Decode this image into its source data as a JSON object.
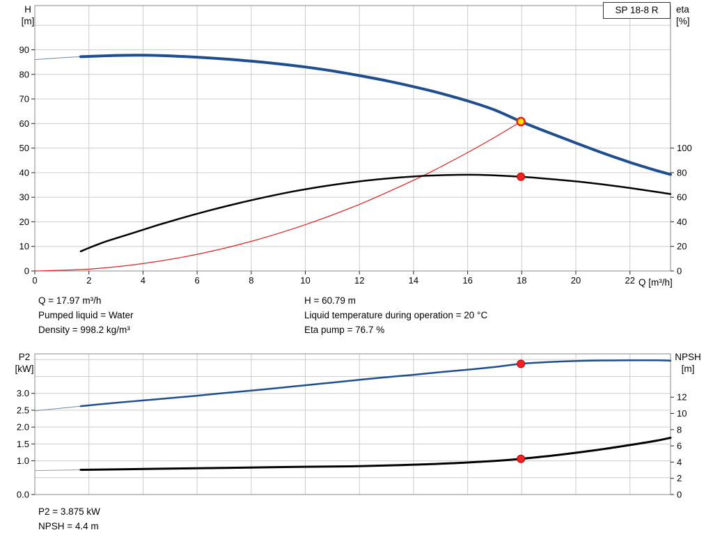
{
  "title_box": "SP 18-8 R",
  "axis_titles": {
    "top_left": [
      "H",
      "[m]"
    ],
    "top_right": [
      "eta",
      "[%]"
    ],
    "bottom_left": [
      "P2",
      "[kW]"
    ],
    "bottom_right": [
      "NPSH",
      "[m]"
    ]
  },
  "info_top": {
    "col1": [
      "Q = 17.97 m³/h",
      "Pumped liquid = Water",
      "Density = 998.2 kg/m³"
    ],
    "col2": [
      "H = 60.79 m",
      "Liquid temperature during operation = 20 °C",
      "Eta pump = 76.7 %"
    ]
  },
  "info_bottom": [
    "P2 = 3.875 kW",
    "NPSH = 4.4 m"
  ],
  "colors": {
    "curve_blue": "#1f4e8f",
    "curve_lead_blue": "#6e87a8",
    "curve_black": "#000000",
    "curve_lead_gray": "#9a9a9a",
    "curve_red": "#e02020",
    "marker_red": "#ee2222",
    "marker_red_edge": "#c00000",
    "marker_yellow": "#ffe400",
    "grid": "#cccccc",
    "frame": "#888888",
    "tick": "#222222"
  },
  "chart_data": [
    {
      "type": "line",
      "title": "SP 18-8 R",
      "xlabel": "Q [m³/h]",
      "x_range": [
        0,
        23.5
      ],
      "x_ticks": [
        {
          "v": 0,
          "label": "0"
        },
        {
          "v": 2,
          "label": "2"
        },
        {
          "v": 4,
          "label": "4"
        },
        {
          "v": 6,
          "label": "6"
        },
        {
          "v": 8,
          "label": "8"
        },
        {
          "v": 10,
          "label": "10"
        },
        {
          "v": 12,
          "label": "12"
        },
        {
          "v": 14,
          "label": "14"
        },
        {
          "v": 16,
          "label": "16"
        },
        {
          "v": 18,
          "label": "18"
        },
        {
          "v": 20,
          "label": "20"
        },
        {
          "v": 22,
          "label": "22"
        }
      ],
      "left_axis": {
        "label": "H [m]",
        "range": [
          0,
          108
        ],
        "ticks": [
          {
            "v": 0,
            "label": "0"
          },
          {
            "v": 10,
            "label": "10"
          },
          {
            "v": 20,
            "label": "20"
          },
          {
            "v": 30,
            "label": "30"
          },
          {
            "v": 40,
            "label": "40"
          },
          {
            "v": 50,
            "label": "50"
          },
          {
            "v": 60,
            "label": "60"
          },
          {
            "v": 70,
            "label": "70"
          },
          {
            "v": 80,
            "label": "80"
          },
          {
            "v": 90,
            "label": "90"
          },
          {
            "v": 100,
            "label": ""
          }
        ]
      },
      "right_axis": {
        "label": "eta [%]",
        "range": [
          0,
          216
        ],
        "ticks": [
          {
            "v": 0,
            "label": "0"
          },
          {
            "v": 20,
            "label": "20"
          },
          {
            "v": 40,
            "label": "40"
          },
          {
            "v": 60,
            "label": "60"
          },
          {
            "v": 80,
            "label": "80"
          },
          {
            "v": 100,
            "label": "100"
          }
        ]
      },
      "grid": true,
      "box": {
        "x0": 50,
        "x1": 963,
        "y0": 8,
        "y1": 389
      },
      "series": [
        {
          "name": "duty-parabola",
          "axis": "left",
          "color": "#e02020",
          "width": 1.2,
          "points": [
            [
              0,
              0
            ],
            [
              2,
              0.75
            ],
            [
              4,
              3.01
            ],
            [
              6,
              6.78
            ],
            [
              8,
              12.05
            ],
            [
              10,
              18.83
            ],
            [
              12,
              27.11
            ],
            [
              14,
              36.9
            ],
            [
              15,
              42.36
            ],
            [
              16,
              48.2
            ],
            [
              17,
              54.41
            ],
            [
              17.97,
              60.79
            ]
          ]
        },
        {
          "name": "eta-curve",
          "axis": "right",
          "color": "#000000",
          "width": 2.5,
          "points": [
            [
              1.7,
              16
            ],
            [
              2.5,
              23
            ],
            [
              3.5,
              30
            ],
            [
              4.5,
              37
            ],
            [
              5.5,
              43.5
            ],
            [
              6.5,
              49.5
            ],
            [
              7.5,
              55
            ],
            [
              8.5,
              60
            ],
            [
              9.5,
              64.5
            ],
            [
              10.5,
              68.3
            ],
            [
              11.5,
              71.5
            ],
            [
              12.5,
              74.1
            ],
            [
              13.5,
              76.1
            ],
            [
              14.5,
              77.5
            ],
            [
              15.5,
              78.2
            ],
            [
              16.5,
              78.2
            ],
            [
              17.97,
              76.7
            ],
            [
              19,
              74.9
            ],
            [
              20,
              72.9
            ],
            [
              21,
              70.4
            ],
            [
              22,
              67.5
            ],
            [
              23,
              64.3
            ],
            [
              23.5,
              62.6
            ]
          ]
        },
        {
          "name": "hq-lead",
          "axis": "left",
          "color": "#6e87a8",
          "width": 1,
          "points": [
            [
              0,
              86.0
            ],
            [
              0.9,
              86.7
            ],
            [
              1.7,
              87.2
            ]
          ]
        },
        {
          "name": "hq-curve",
          "axis": "left",
          "color": "#1f4e8f",
          "width": 4,
          "points": [
            [
              1.7,
              87.2
            ],
            [
              3,
              87.7
            ],
            [
              4,
              87.8
            ],
            [
              5,
              87.5
            ],
            [
              6,
              87.0
            ],
            [
              7,
              86.3
            ],
            [
              8,
              85.4
            ],
            [
              9,
              84.3
            ],
            [
              10,
              83.0
            ],
            [
              11,
              81.4
            ],
            [
              12,
              79.5
            ],
            [
              13,
              77.4
            ],
            [
              14,
              75.0
            ],
            [
              15,
              72.3
            ],
            [
              16,
              69.2
            ],
            [
              17,
              65.5
            ],
            [
              17.97,
              60.79
            ],
            [
              19,
              56.3
            ],
            [
              20,
              52.1
            ],
            [
              21,
              48.0
            ],
            [
              22,
              44.2
            ],
            [
              23,
              40.8
            ],
            [
              23.5,
              39.3
            ]
          ]
        }
      ],
      "markers": [
        {
          "name": "duty-point-eta-marker",
          "x": 17.97,
          "y": 76.7,
          "axis": "right",
          "r": 5.5,
          "fill": "#ee2222",
          "stroke": "#c00000",
          "sw": 1
        },
        {
          "name": "duty-point-hq-marker",
          "x": 17.97,
          "y": 60.79,
          "axis": "left",
          "r": 5.5,
          "fill": "#ffe400",
          "stroke": "#e02020",
          "sw": 2.5
        }
      ]
    },
    {
      "type": "line",
      "title": "",
      "xlabel": "",
      "x_range": [
        0,
        23.5
      ],
      "x_ticks": [
        {
          "v": 2,
          "label": ""
        },
        {
          "v": 4,
          "label": ""
        },
        {
          "v": 6,
          "label": ""
        },
        {
          "v": 8,
          "label": ""
        },
        {
          "v": 10,
          "label": ""
        },
        {
          "v": 12,
          "label": ""
        },
        {
          "v": 14,
          "label": ""
        },
        {
          "v": 16,
          "label": ""
        },
        {
          "v": 18,
          "label": ""
        },
        {
          "v": 20,
          "label": ""
        },
        {
          "v": 22,
          "label": ""
        }
      ],
      "left_axis": {
        "label": "P2 [kW]",
        "range": [
          0,
          4.171
        ],
        "ticks": [
          {
            "v": 0,
            "label": "0.0"
          },
          {
            "v": 0.5,
            "label": ""
          },
          {
            "v": 1,
            "label": "1.0"
          },
          {
            "v": 1.5,
            "label": "1.5"
          },
          {
            "v": 2,
            "label": "2.0"
          },
          {
            "v": 2.5,
            "label": "2.5"
          },
          {
            "v": 3,
            "label": "3.0"
          },
          {
            "v": 3.5,
            "label": ""
          },
          {
            "v": 4,
            "label": ""
          }
        ]
      },
      "right_axis": {
        "label": "NPSH [m]",
        "range": [
          0,
          17.34
        ],
        "ticks": [
          {
            "v": 0,
            "label": "0"
          },
          {
            "v": 2,
            "label": "2"
          },
          {
            "v": 4,
            "label": "4"
          },
          {
            "v": 6,
            "label": "6"
          },
          {
            "v": 8,
            "label": "8"
          },
          {
            "v": 10,
            "label": "10"
          },
          {
            "v": 12,
            "label": "12"
          }
        ]
      },
      "grid": true,
      "box": {
        "x0": 50,
        "x1": 963,
        "y0": 8,
        "y1": 210
      },
      "series": [
        {
          "name": "npsh-lead",
          "axis": "right",
          "color": "#9a9a9a",
          "width": 1,
          "points": [
            [
              0,
              2.95
            ],
            [
              1.7,
              3.05
            ]
          ]
        },
        {
          "name": "npsh-curve",
          "axis": "right",
          "color": "#000000",
          "width": 3,
          "points": [
            [
              1.7,
              3.05
            ],
            [
              3,
              3.1
            ],
            [
              5,
              3.2
            ],
            [
              7,
              3.28
            ],
            [
              9,
              3.38
            ],
            [
              11,
              3.45
            ],
            [
              12,
              3.5
            ],
            [
              13,
              3.58
            ],
            [
              14,
              3.68
            ],
            [
              15,
              3.8
            ],
            [
              16,
              3.95
            ],
            [
              17,
              4.15
            ],
            [
              17.97,
              4.4
            ],
            [
              19,
              4.75
            ],
            [
              20,
              5.15
            ],
            [
              21,
              5.6
            ],
            [
              22,
              6.1
            ],
            [
              23,
              6.65
            ],
            [
              23.5,
              7.0
            ]
          ]
        },
        {
          "name": "p2-lead",
          "axis": "left",
          "color": "#6e87a8",
          "width": 1,
          "points": [
            [
              0,
              2.48
            ],
            [
              1.7,
              2.62
            ]
          ]
        },
        {
          "name": "p2-curve",
          "axis": "left",
          "color": "#1f4e8f",
          "width": 2.5,
          "points": [
            [
              1.7,
              2.62
            ],
            [
              3,
              2.72
            ],
            [
              4,
              2.79
            ],
            [
              5,
              2.86
            ],
            [
              6,
              2.93
            ],
            [
              7,
              3.01
            ],
            [
              8,
              3.08
            ],
            [
              9,
              3.16
            ],
            [
              10,
              3.24
            ],
            [
              11,
              3.32
            ],
            [
              12,
              3.4
            ],
            [
              13,
              3.48
            ],
            [
              14,
              3.55
            ],
            [
              15,
              3.63
            ],
            [
              16,
              3.7
            ],
            [
              17,
              3.78
            ],
            [
              17.97,
              3.875
            ],
            [
              19,
              3.93
            ],
            [
              20,
              3.96
            ],
            [
              21,
              3.975
            ],
            [
              22,
              3.98
            ],
            [
              23,
              3.98
            ],
            [
              23.5,
              3.97
            ]
          ]
        }
      ],
      "markers": [
        {
          "name": "duty-point-p2-marker",
          "x": 17.97,
          "y": 3.875,
          "axis": "left",
          "r": 5.5,
          "fill": "#ee2222",
          "stroke": "#c00000",
          "sw": 1
        },
        {
          "name": "duty-point-npsh-marker",
          "x": 17.97,
          "y": 4.4,
          "axis": "right",
          "r": 5.5,
          "fill": "#ee2222",
          "stroke": "#c00000",
          "sw": 1
        }
      ]
    }
  ]
}
